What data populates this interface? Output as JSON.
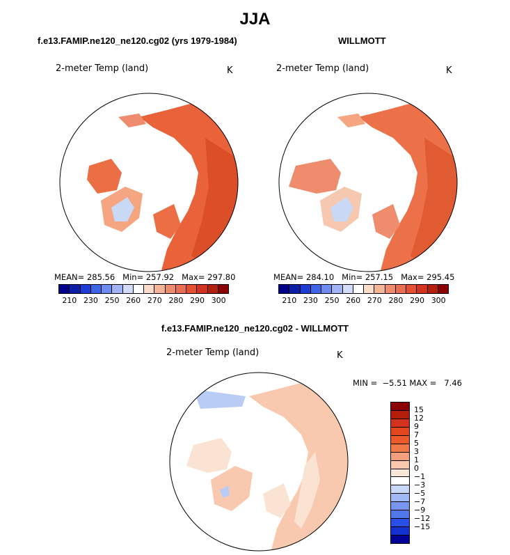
{
  "title": "JJA",
  "panels": [
    {
      "subtitle": "f.e13.FAMIP.ne120_ne120.cg02 (yrs 1979-1984)",
      "field_label": "2-meter Temp (land)",
      "units": "K",
      "mean_label": "MEAN= 285.56",
      "min_label": "Min= 257.92",
      "max_label": "Max= 297.80"
    },
    {
      "subtitle": "WILLMOTT",
      "field_label": "2-meter Temp (land)",
      "units": "K",
      "mean_label": "MEAN= 284.10",
      "min_label": "Min= 257.15",
      "max_label": "Max= 295.45"
    },
    {
      "subtitle": "f.e13.FAMIP.ne120_ne120.cg02 - WILLMOTT",
      "field_label": "2-meter Temp (land)",
      "units": "K",
      "minmax_label": "MIN =  −5.51 MAX =   7.46"
    }
  ],
  "abs_colorbar": {
    "colors": [
      "#00008b",
      "#0a1ea8",
      "#1e3cd2",
      "#3c64e6",
      "#6e8cf0",
      "#a0b4f5",
      "#d2dcfa",
      "#ffffff",
      "#fadcc8",
      "#f5b496",
      "#f08c6e",
      "#eb6e50",
      "#e65032",
      "#d2321e",
      "#b41e0a",
      "#8b0000"
    ],
    "ticks": [
      "210",
      "230",
      "250",
      "260",
      "270",
      "280",
      "290",
      "300"
    ]
  },
  "diff_colorbar": {
    "colors": [
      "#8b0000",
      "#b41e0a",
      "#d2321e",
      "#e6461e",
      "#eb5a28",
      "#f07846",
      "#f5a07d",
      "#fac8aa",
      "#fae6d7",
      "#ffffff",
      "#c8d7fa",
      "#a0b9f5",
      "#7896f0",
      "#5078eb",
      "#2850e6",
      "#1432d2",
      "#000096"
    ],
    "ticks": [
      "15",
      "12",
      "9",
      "7",
      "5",
      "3",
      "1",
      "0",
      "−1",
      "−3",
      "−5",
      "−7",
      "−9",
      "−12",
      "−15"
    ]
  },
  "map_colors": {
    "ocean": "#ffffff",
    "warm_dark": "#e0552e",
    "warm_mid": "#eb6e45",
    "warm_light": "#f5a57f",
    "greenland_edge": "#f7c8b0",
    "greenland_core": "#c8d8f5",
    "diff_land": "#f8c9ae",
    "diff_land_light": "#fbe3d4",
    "diff_blue": "#b8ccf5"
  }
}
